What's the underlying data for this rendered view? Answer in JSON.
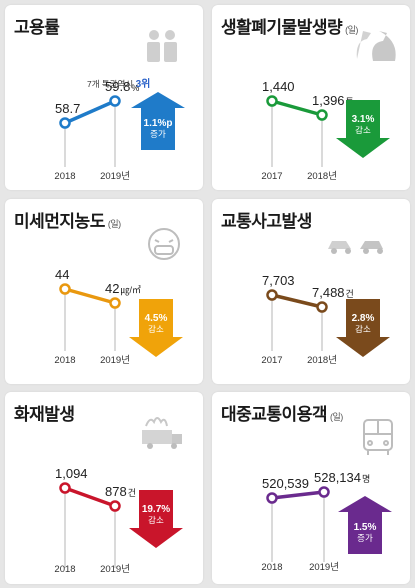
{
  "chart_data": [
    {
      "type": "line",
      "title": "고용률",
      "unit_label": "",
      "x": [
        "2018",
        "2019년"
      ],
      "values": [
        58.7,
        59.8
      ],
      "value_labels": [
        "58.7",
        "59.8"
      ],
      "value_unit": "%",
      "note_prefix": "7개 특광역시",
      "note_rank": "3위",
      "change": {
        "value": "1.1%p",
        "direction": "증가"
      },
      "color": "#1f7bc9",
      "arrow_color": "#1f7bc9",
      "icon": "people-icon"
    },
    {
      "type": "line",
      "title": "생활폐기물발생량",
      "unit_label": "(일)",
      "x": [
        "2017",
        "2018년"
      ],
      "values": [
        1440,
        1396
      ],
      "value_labels": [
        "1,440",
        "1,396"
      ],
      "value_unit": "톤",
      "change": {
        "value": "3.1%",
        "direction": "감소"
      },
      "color": "#1a9a3a",
      "arrow_color": "#1a9a3a",
      "icon": "garbage-bag-icon"
    },
    {
      "type": "line",
      "title": "미세먼지농도",
      "unit_label": "(일)",
      "x": [
        "2018",
        "2019년"
      ],
      "values": [
        44,
        42
      ],
      "value_labels": [
        "44",
        "42"
      ],
      "value_unit": "㎍/㎥",
      "change": {
        "value": "4.5%",
        "direction": "감소"
      },
      "color": "#e9980f",
      "arrow_color": "#f0a30a",
      "icon": "mask-face-icon"
    },
    {
      "type": "line",
      "title": "교통사고발생",
      "unit_label": "",
      "x": [
        "2017",
        "2018년"
      ],
      "values": [
        7703,
        7488
      ],
      "value_labels": [
        "7,703",
        "7,488"
      ],
      "value_unit": "건",
      "change": {
        "value": "2.8%",
        "direction": "감소"
      },
      "color": "#7a4a1c",
      "arrow_color": "#7a4a1c",
      "icon": "car-crash-icon"
    },
    {
      "type": "line",
      "title": "화재발생",
      "unit_label": "",
      "x": [
        "2018",
        "2019년"
      ],
      "values": [
        1094,
        878
      ],
      "value_labels": [
        "1,094",
        "878"
      ],
      "value_unit": "건",
      "change": {
        "value": "19.7%",
        "direction": "감소"
      },
      "color": "#c9152b",
      "arrow_color": "#c9152b",
      "icon": "fire-truck-icon"
    },
    {
      "type": "line",
      "title": "대중교통이용객",
      "unit_label": "(일)",
      "x": [
        "2018",
        "2019년"
      ],
      "values": [
        520539,
        528134
      ],
      "value_labels": [
        "520,539",
        "528,134"
      ],
      "value_unit": "명",
      "change": {
        "value": "1.5%",
        "direction": "증가"
      },
      "color": "#6a2a8e",
      "arrow_color": "#6a2a8e",
      "icon": "bus-icon"
    }
  ]
}
